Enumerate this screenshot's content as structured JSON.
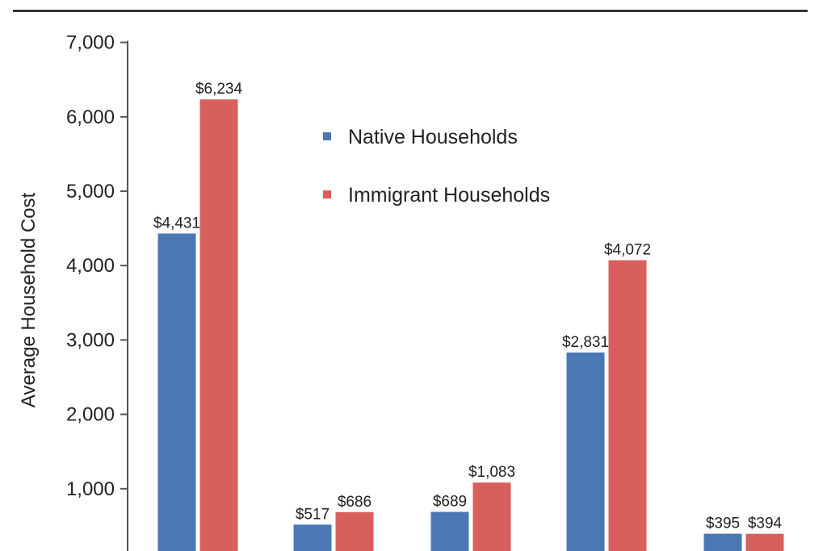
{
  "chart_data": {
    "type": "bar",
    "title": "",
    "xlabel": "",
    "ylabel": "Average Household Cost",
    "ylim": [
      0,
      7000
    ],
    "yticks": [
      1000,
      2000,
      3000,
      4000,
      5000,
      6000,
      7000
    ],
    "ytick_labels": [
      "1,000",
      "2,000",
      "3,000",
      "4,000",
      "5,000",
      "6,000",
      "7,000"
    ],
    "categories": [
      "",
      "",
      "",
      "",
      ""
    ],
    "series": [
      {
        "name": "Native Households",
        "color": "#4a78b5",
        "values": [
          4431,
          517,
          689,
          2831,
          395
        ],
        "labels": [
          "$4,431",
          "$517",
          "$689",
          "$2,831",
          "$395"
        ]
      },
      {
        "name": "Immigrant Households",
        "color": "#d75f5c",
        "values": [
          6234,
          686,
          1083,
          4072,
          394
        ],
        "labels": [
          "$6,234",
          "$686",
          "$1,083",
          "$4,072",
          "$394"
        ]
      }
    ],
    "grid": false,
    "legend_position": "upper-center"
  }
}
